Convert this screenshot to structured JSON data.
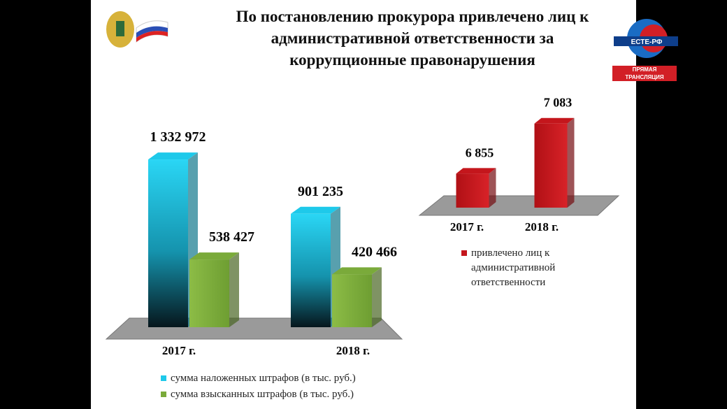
{
  "slide_title": "По постановлению прокурора привлечено лиц к административной ответственности за коррупционные правонарушения",
  "channel": {
    "name": "ЕСТЕ-РФ",
    "status": "ПРЯМАЯ ТРАНСЛЯЦИЯ"
  },
  "chart_data": [
    {
      "type": "bar3d",
      "categories": [
        "2017 г.",
        "2018 г."
      ],
      "ylim": [
        0,
        1500000
      ],
      "series": [
        {
          "name": "сумма наложенных штрафов (в тыс. руб.)",
          "color": "#1ec9ea",
          "values": [
            1332972,
            901235
          ],
          "value_labels": [
            "1 332 972",
            "901 235"
          ]
        },
        {
          "name": "сумма взысканных штрафов (в тыс. руб.)",
          "color": "#7aaa3a",
          "values": [
            538427,
            420466
          ],
          "value_labels": [
            "538 427",
            "420 466"
          ]
        }
      ]
    },
    {
      "type": "bar3d",
      "categories": [
        "2017 г.",
        "2018 г."
      ],
      "ylim": [
        6700,
        7200
      ],
      "series": [
        {
          "name": "привлечено лиц к административной ответственности",
          "color": "#c4161c",
          "values": [
            6855,
            7083
          ],
          "value_labels": [
            "6 855",
            "7 083"
          ]
        }
      ]
    }
  ]
}
